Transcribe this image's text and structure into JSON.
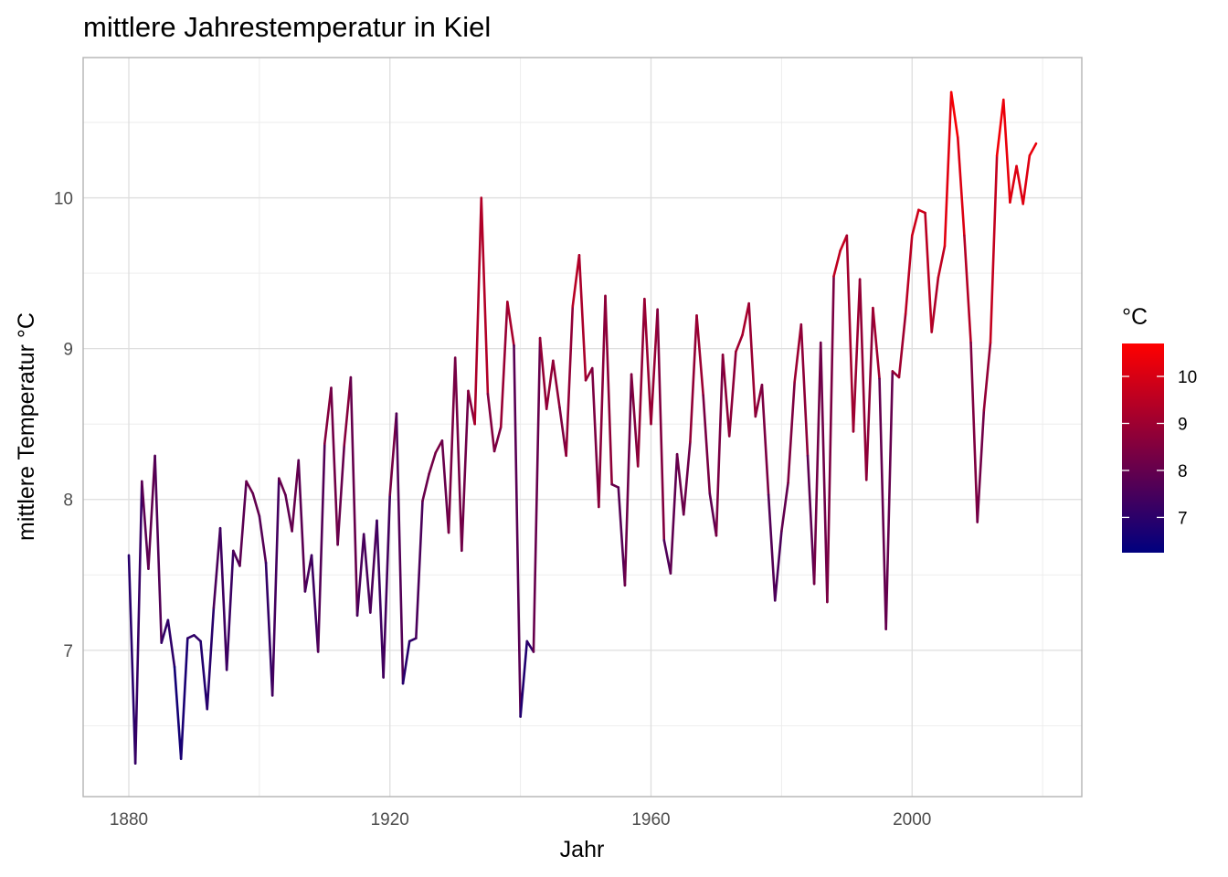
{
  "chart_data": {
    "type": "line",
    "title": "mittlere Jahrestemperatur in Kiel",
    "xlabel": "Jahr",
    "ylabel": "mittlere Temperatur °C",
    "xlim": [
      1873,
      2026
    ],
    "ylim": [
      6.03,
      10.93
    ],
    "x_ticks": [
      1880,
      1920,
      1960,
      2000
    ],
    "y_ticks": [
      7,
      8,
      9,
      10
    ],
    "x_tick_labels": [
      "1880",
      "1920",
      "1960",
      "2000"
    ],
    "y_tick_labels": [
      "7",
      "8",
      "9",
      "10"
    ],
    "grid": true,
    "legend": {
      "title": "°C",
      "position": "right",
      "labels": [
        "10",
        "9",
        "8",
        "7"
      ],
      "values": [
        10,
        9,
        8,
        7
      ],
      "range": [
        6.25,
        10.7
      ],
      "low_color": "#00007F",
      "high_color": "#FF0000"
    },
    "colors": {
      "low": "#00007F",
      "high": "#FF0000"
    },
    "series": [
      {
        "x": [
          1880,
          1881,
          1882,
          1883,
          1884,
          1885,
          1886,
          1887,
          1888,
          1889,
          1890,
          1891,
          1892,
          1893,
          1894,
          1895,
          1896,
          1897,
          1898,
          1899,
          1900,
          1901,
          1902,
          1903,
          1904,
          1905,
          1906,
          1907,
          1908,
          1909,
          1910,
          1911,
          1912,
          1913,
          1914,
          1915,
          1916,
          1917,
          1918,
          1919,
          1920,
          1921,
          1922,
          1923,
          1924,
          1925,
          1926,
          1927,
          1928,
          1929,
          1930,
          1931,
          1932,
          1933,
          1934,
          1935,
          1936,
          1937,
          1938,
          1939,
          1940,
          1941,
          1942,
          1943,
          1944,
          1945,
          1946,
          1947,
          1948,
          1949,
          1950,
          1951,
          1952,
          1953,
          1954,
          1955,
          1956,
          1957,
          1958,
          1959,
          1960,
          1961,
          1962,
          1963,
          1964,
          1965,
          1966,
          1967,
          1968,
          1969,
          1970,
          1971,
          1972,
          1973,
          1974,
          1975,
          1976,
          1977,
          1978,
          1979,
          1980,
          1981,
          1982,
          1983,
          1984,
          1985,
          1986,
          1987,
          1988,
          1989,
          1990,
          1991,
          1992,
          1993,
          1994,
          1995,
          1996,
          1997,
          1998,
          1999,
          2000,
          2001,
          2002,
          2003,
          2004,
          2005,
          2006,
          2007,
          2008,
          2009,
          2010,
          2011,
          2012,
          2013,
          2014,
          2015,
          2016,
          2017,
          2018,
          2019
        ],
        "values": [
          7.63,
          6.25,
          8.12,
          7.54,
          8.29,
          7.05,
          7.2,
          6.89,
          6.28,
          7.08,
          7.1,
          7.06,
          6.61,
          7.28,
          7.81,
          6.87,
          7.66,
          7.56,
          8.12,
          8.04,
          7.89,
          7.58,
          6.7,
          8.14,
          8.03,
          7.79,
          8.26,
          7.39,
          7.63,
          6.99,
          8.37,
          8.74,
          7.7,
          8.36,
          8.81,
          7.23,
          7.77,
          7.25,
          7.86,
          6.82,
          8.03,
          8.57,
          6.78,
          7.06,
          7.08,
          7.99,
          8.17,
          8.31,
          8.39,
          7.78,
          8.94,
          7.66,
          8.72,
          8.5,
          10.0,
          8.7,
          8.32,
          8.48,
          9.31,
          9.02,
          6.56,
          7.06,
          6.99,
          9.07,
          8.6,
          8.92,
          8.61,
          8.29,
          9.28,
          9.62,
          8.79,
          8.87,
          7.95,
          9.35,
          8.1,
          8.08,
          7.43,
          8.83,
          8.22,
          9.33,
          8.5,
          9.26,
          7.73,
          7.51,
          8.3,
          7.9,
          8.38,
          9.22,
          8.69,
          8.04,
          7.76,
          8.96,
          8.42,
          8.98,
          9.09,
          9.3,
          8.55,
          8.76,
          8.03,
          7.33,
          7.79,
          8.11,
          8.78,
          9.16,
          8.29,
          7.44,
          9.04,
          7.32,
          9.48,
          9.65,
          9.75,
          8.45,
          9.46,
          8.13,
          9.27,
          8.8,
          7.14,
          8.85,
          8.81,
          9.23,
          9.75,
          9.92,
          9.9,
          9.11,
          9.47,
          9.68,
          10.7,
          10.4,
          9.75,
          9.04,
          7.85,
          8.59,
          9.04,
          10.28,
          10.65,
          9.97,
          10.21,
          9.96,
          10.28,
          10.36
        ]
      }
    ]
  }
}
